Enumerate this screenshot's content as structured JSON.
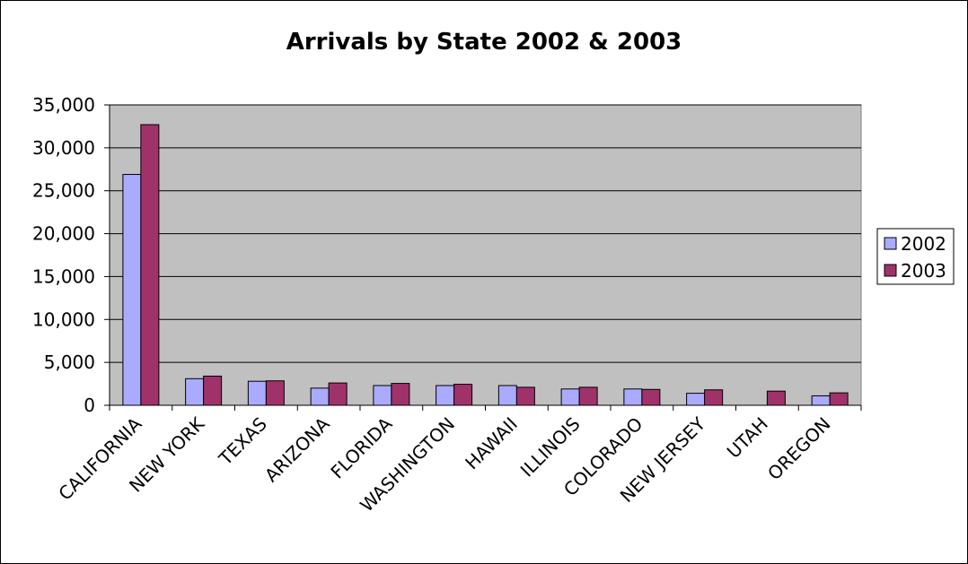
{
  "chart_data": {
    "type": "bar",
    "title": "Arrivals by State 2002 & 2003",
    "xlabel": "",
    "ylabel": "",
    "categories": [
      "CALIFORNIA",
      "NEW YORK",
      "TEXAS",
      "ARIZONA",
      "FLORIDA",
      "WASHINGTON",
      "HAWAII",
      "ILLINOIS",
      "COLORADO",
      "NEW JERSEY",
      "UTAH",
      "OREGON"
    ],
    "series": [
      {
        "name": "2002",
        "color": "#aaaaff",
        "values": [
          26900,
          3100,
          2800,
          2000,
          2300,
          2300,
          2300,
          1900,
          1900,
          1400,
          0,
          1100
        ]
      },
      {
        "name": "2003",
        "color": "#a0326a",
        "values": [
          32700,
          3400,
          2850,
          2600,
          2550,
          2450,
          2100,
          2100,
          1850,
          1800,
          1650,
          1450
        ]
      }
    ],
    "ylim": [
      0,
      35000
    ],
    "yticks": [
      0,
      5000,
      10000,
      15000,
      20000,
      25000,
      30000,
      35000
    ],
    "ytick_labels": [
      "0",
      "5,000",
      "10,000",
      "15,000",
      "20,000",
      "25,000",
      "30,000",
      "35,000"
    ],
    "grid": true,
    "plot_background": "#c0c0c0",
    "legend": {
      "position": "right",
      "entries": [
        "2002",
        "2003"
      ]
    }
  }
}
